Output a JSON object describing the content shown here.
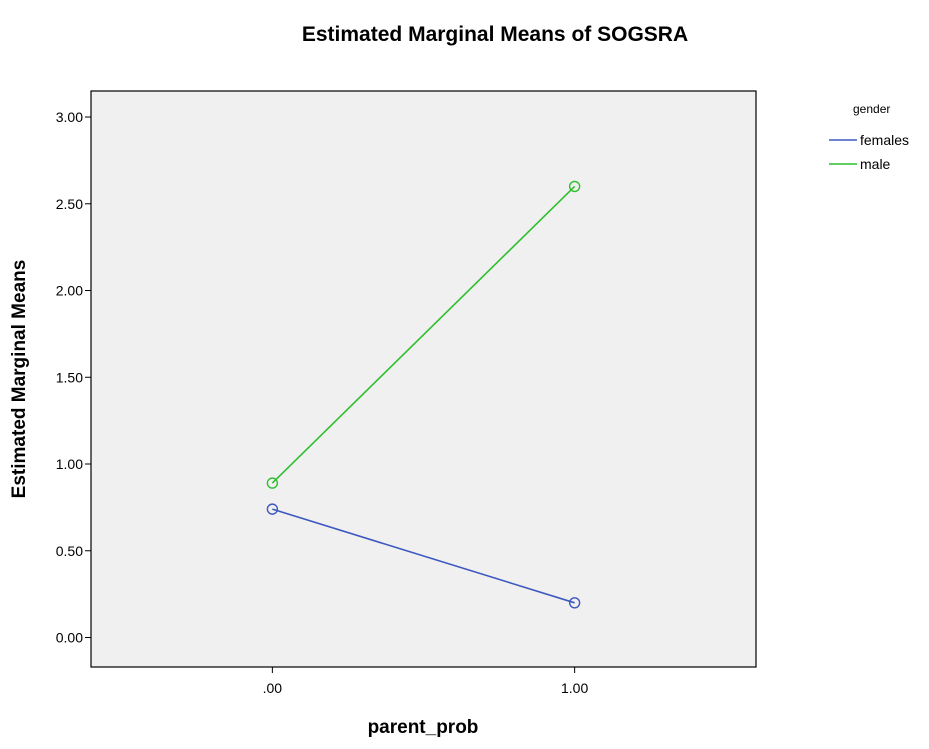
{
  "chart_data": {
    "type": "line",
    "title": "Estimated Marginal Means of SOGSRA",
    "xlabel": "parent_prob",
    "ylabel": "Estimated Marginal Means",
    "categories": [
      ".00",
      "1.00"
    ],
    "x": [
      0,
      1
    ],
    "xlim": [
      -0.6,
      1.6
    ],
    "ylim": [
      -0.17,
      3.15
    ],
    "yticks": [
      0,
      0.5,
      1,
      1.5,
      2,
      2.5,
      3
    ],
    "ytick_labels": [
      "0.00",
      "0.50",
      "1.00",
      "1.50",
      "2.00",
      "2.50",
      "3.00"
    ],
    "legend_title": "gender",
    "legend_position": "top-right outside plot",
    "grid": false,
    "plot_background": "#f0f0f0",
    "markers": "hollow circle",
    "series": [
      {
        "name": "females",
        "color": "#3e58c0",
        "values": [
          0.74,
          0.2
        ]
      },
      {
        "name": "male",
        "color": "#2ebf2e",
        "values": [
          0.89,
          2.6
        ]
      }
    ]
  }
}
